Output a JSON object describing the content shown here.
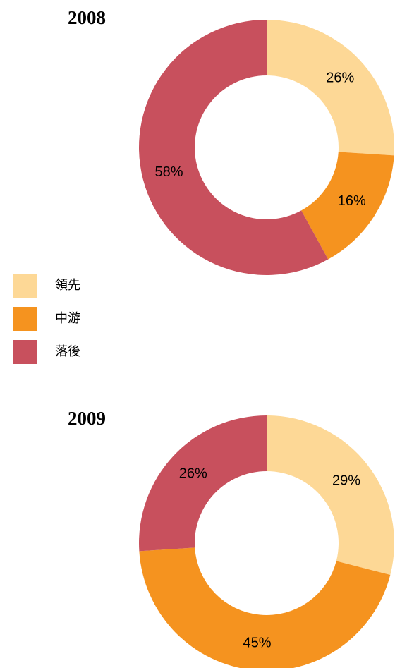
{
  "chart_data": [
    {
      "type": "donut",
      "title": "2008",
      "categories": [
        "領先",
        "中游",
        "落後"
      ],
      "colors": [
        "#fdd896",
        "#f5931f",
        "#c8505d"
      ],
      "values": [
        26,
        16,
        58
      ],
      "value_labels": [
        "26%",
        "16%",
        "58%"
      ]
    },
    {
      "type": "donut",
      "title": "2009",
      "values": [
        29,
        45,
        26
      ],
      "value_labels": [
        "29%",
        "45%",
        "26%"
      ]
    }
  ]
}
